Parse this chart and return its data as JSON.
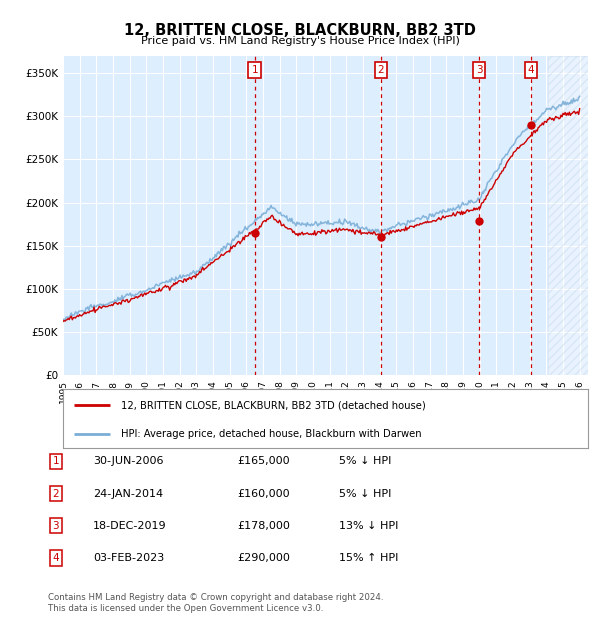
{
  "title": "12, BRITTEN CLOSE, BLACKBURN, BB2 3TD",
  "subtitle": "Price paid vs. HM Land Registry's House Price Index (HPI)",
  "ylabel_ticks": [
    "£0",
    "£50K",
    "£100K",
    "£150K",
    "£200K",
    "£250K",
    "£300K",
    "£350K"
  ],
  "ytick_values": [
    0,
    50000,
    100000,
    150000,
    200000,
    250000,
    300000,
    350000
  ],
  "ylim": [
    0,
    370000
  ],
  "xlim_start": 1995.0,
  "xlim_end": 2026.5,
  "hpi_color": "#7aaed6",
  "price_color": "#cc0000",
  "bg_color": "#ddeeff",
  "hatch_start": 2024.1,
  "sale_points": [
    {
      "label": "1",
      "year": 2006.5,
      "price": 165000
    },
    {
      "label": "2",
      "year": 2014.07,
      "price": 160000
    },
    {
      "label": "3",
      "year": 2019.96,
      "price": 178000
    },
    {
      "label": "4",
      "year": 2023.09,
      "price": 290000
    }
  ],
  "legend_line1": "12, BRITTEN CLOSE, BLACKBURN, BB2 3TD (detached house)",
  "legend_line2": "HPI: Average price, detached house, Blackburn with Darwen",
  "table_rows": [
    {
      "num": "1",
      "date": "30-JUN-2006",
      "price": "£165,000",
      "pct": "5% ↓ HPI"
    },
    {
      "num": "2",
      "date": "24-JAN-2014",
      "price": "£160,000",
      "pct": "5% ↓ HPI"
    },
    {
      "num": "3",
      "date": "18-DEC-2019",
      "price": "£178,000",
      "pct": "13% ↓ HPI"
    },
    {
      "num": "4",
      "date": "03-FEB-2023",
      "price": "£290,000",
      "pct": "15% ↑ HPI"
    }
  ],
  "footnote": "Contains HM Land Registry data © Crown copyright and database right 2024.\nThis data is licensed under the Open Government Licence v3.0."
}
